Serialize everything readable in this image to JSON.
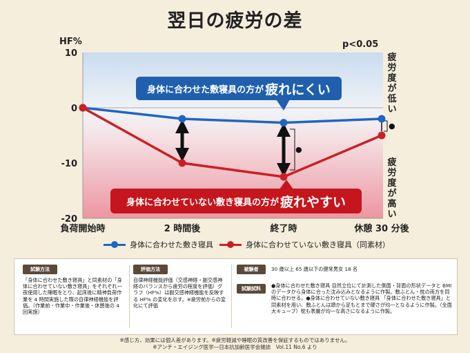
{
  "title": "翌日の疲労の差",
  "chart_data": {
    "type": "line",
    "ylabel": "HF%",
    "ylim": [
      -20,
      10
    ],
    "yticks": [
      "10",
      "0",
      "-10",
      "-20"
    ],
    "categories": [
      "負荷開始時",
      "2 時間後",
      "終了時",
      "休憩 30 分後"
    ],
    "series": [
      {
        "name": "身体に合わせた敷き寝具",
        "color": "#1f66c1",
        "values": [
          0,
          -2,
          -2.7,
          -2
        ]
      },
      {
        "name": "身体に合わせていない敷き寝具（同素材）",
        "color": "#cc1f25",
        "values": [
          0,
          -10,
          -12.5,
          -5
        ]
      }
    ],
    "annotation_p": "p<0.05",
    "right_label_top": "疲労度が低い",
    "right_label_bottom": "疲労度が高い",
    "significance_mark": "●"
  },
  "bubble_blue": {
    "small": "身体に合わせた敷寝具の方が",
    "big": "疲れにくい"
  },
  "bubble_red": {
    "small": "身体に合わせていない敷き寝具の方が",
    "big": "疲れやすい"
  },
  "legend": {
    "blue": "身体に合わせた敷き寝具",
    "red": "身体に合わせていない敷き寝具（同素材）"
  },
  "info": {
    "method_tag": "試験方法",
    "method_text": "「身体に合わせた敷き寝具」と同素材の「身体に合わせていない敷き寝具」をそれぞれ一夜使用した睡眠をとり、起床後に精神負荷作業を 4 時間実施した際の自律神経機能を評価。（作業前・作業中・作業後・休憩後の 4 回実施）",
    "eval_tag": "評価方法",
    "eval_text": "自律神経機能評価（交感神経・副交感神経のバランスから疲労の程度を評価）グラフ（HF%）は副交感神経機能を反映する HF% の変化を示す。※疲労前からの変化にて評価",
    "subject_tag": "被験者",
    "subject_text": "30 歳以上 65 歳以下の健常男女 18 名",
    "sample_tag": "試験試料",
    "sample_text": "●身体に合わせた敷き寝具 自然立位にて計測した側面・背面の形状データと BMI のデータから身体に合った沈み込みとなるように作製。敷ふとん・枕の両方を同時に合わせる。●身体に合わせていない敷き寝具 「身体に合わせた敷き寝具」と同素材を用い、敷ふとんは頭から足もとまで硬さが均一となるように作製。（全面大キューブ）枕も表層が均一な高さになるように作製。"
  },
  "footnote_1": "※感じ方、効果には個人差があります。※疲労軽減や睡眠の質改善を保証するものではありません。",
  "footnote_2": "※アンチ・エイジング医学―日本抗加齢医学会雑誌　Vol.11 No.6 より"
}
